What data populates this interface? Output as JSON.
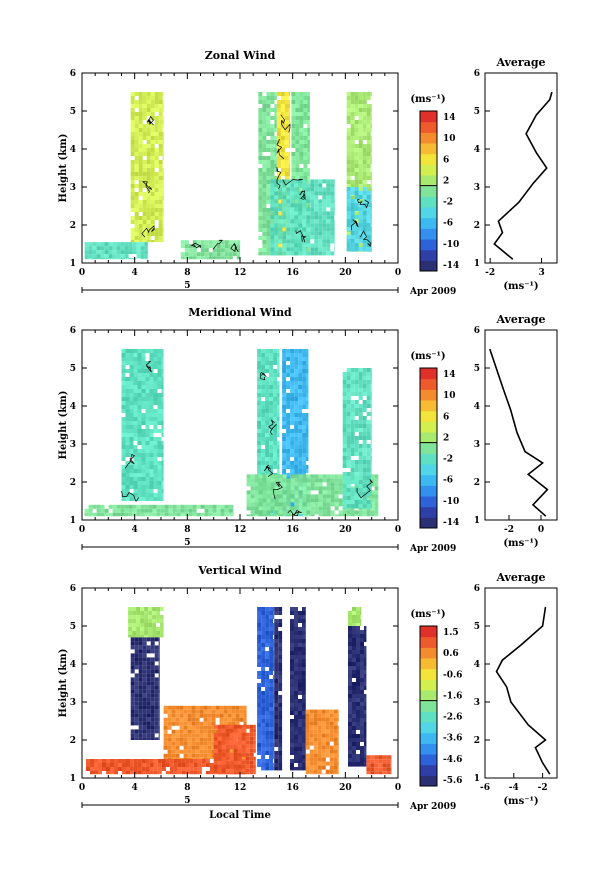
{
  "chart_data": [
    {
      "type": "heatmap",
      "title": "Zonal Wind",
      "ylabel": "Height (km)",
      "xlabel": "",
      "x_ticks": [
        "0",
        "4",
        "8",
        "12",
        "16",
        "20",
        "0"
      ],
      "y_ticks": [
        "1",
        "2",
        "3",
        "4",
        "5",
        "6"
      ],
      "xlim": [
        0,
        24
      ],
      "ylim": [
        1,
        6
      ],
      "colorbar_unit": "(ms⁻¹)",
      "colorbar_ticks": [
        "14",
        "10",
        "6",
        "2",
        "-2",
        "-6",
        "-10",
        "-14"
      ],
      "colorbar_range": [
        -16,
        16
      ],
      "day_label": "5",
      "month_label": "Apr 2009",
      "blocks": [
        {
          "t0": 3.7,
          "t1": 6.2,
          "h0": 1.55,
          "h1": 5.5,
          "v": 4
        },
        {
          "t0": 0.2,
          "t1": 5.0,
          "h0": 1.1,
          "h1": 1.55,
          "v": -2
        },
        {
          "t0": 7.5,
          "t1": 12.0,
          "h0": 1.1,
          "h1": 1.6,
          "v": -1
        },
        {
          "t0": 13.4,
          "t1": 14.8,
          "h0": 1.2,
          "h1": 5.5,
          "v": 0
        },
        {
          "t0": 14.8,
          "t1": 15.8,
          "h0": 1.2,
          "h1": 5.5,
          "v": 6
        },
        {
          "t0": 15.9,
          "t1": 17.3,
          "h0": 1.2,
          "h1": 5.5,
          "v": 1
        },
        {
          "t0": 14.3,
          "t1": 19.2,
          "h0": 1.2,
          "h1": 3.2,
          "v": -3
        },
        {
          "t0": 20.1,
          "t1": 22.0,
          "h0": 1.3,
          "h1": 5.5,
          "v": 2
        },
        {
          "t0": 20.1,
          "t1": 22.0,
          "h0": 1.3,
          "h1": 3.0,
          "v": -4
        }
      ],
      "profile": {
        "title": "Average",
        "xlabel": "(ms⁻¹)",
        "x_ticks": [
          "-2",
          "3"
        ],
        "xlim": [
          -2.5,
          4.5
        ],
        "y_ticks": [
          "1",
          "2",
          "3",
          "4",
          "5",
          "6"
        ],
        "points": [
          [
            0.2,
            1.1
          ],
          [
            -1.6,
            1.5
          ],
          [
            -0.8,
            1.8
          ],
          [
            -1.2,
            2.1
          ],
          [
            0.8,
            2.6
          ],
          [
            2.2,
            3.1
          ],
          [
            3.5,
            3.5
          ],
          [
            2.5,
            3.9
          ],
          [
            1.5,
            4.4
          ],
          [
            2.5,
            4.9
          ],
          [
            3.8,
            5.3
          ],
          [
            4.0,
            5.5
          ]
        ]
      }
    },
    {
      "type": "heatmap",
      "title": "Meridional Wind",
      "ylabel": "Height (km)",
      "xlabel": "",
      "x_ticks": [
        "0",
        "4",
        "8",
        "12",
        "16",
        "20",
        "0"
      ],
      "y_ticks": [
        "1",
        "2",
        "3",
        "4",
        "5",
        "6"
      ],
      "xlim": [
        0,
        24
      ],
      "ylim": [
        1,
        6
      ],
      "colorbar_unit": "(ms⁻¹)",
      "colorbar_ticks": [
        "14",
        "10",
        "6",
        "2",
        "-2",
        "-6",
        "-10",
        "-14"
      ],
      "colorbar_range": [
        -16,
        16
      ],
      "day_label": "5",
      "month_label": "Apr 2009",
      "blocks": [
        {
          "t0": 3.0,
          "t1": 6.2,
          "h0": 1.5,
          "h1": 5.5,
          "v": -3
        },
        {
          "t0": 0.2,
          "t1": 11.5,
          "h0": 1.1,
          "h1": 1.4,
          "v": -1
        },
        {
          "t0": 13.3,
          "t1": 15.0,
          "h0": 1.1,
          "h1": 5.5,
          "v": -2
        },
        {
          "t0": 15.2,
          "t1": 17.2,
          "h0": 1.1,
          "h1": 5.5,
          "v": -6
        },
        {
          "t0": 12.5,
          "t1": 22.5,
          "h0": 1.1,
          "h1": 2.2,
          "v": 1
        },
        {
          "t0": 19.8,
          "t1": 22.0,
          "h0": 1.3,
          "h1": 5.0,
          "v": -3
        }
      ],
      "profile": {
        "title": "Average",
        "xlabel": "(ms⁻¹)",
        "x_ticks": [
          "-2",
          "0"
        ],
        "xlim": [
          -3.5,
          1.0
        ],
        "y_ticks": [
          "1",
          "2",
          "3",
          "4",
          "5",
          "6"
        ],
        "points": [
          [
            0.3,
            1.1
          ],
          [
            -0.5,
            1.4
          ],
          [
            0.4,
            1.8
          ],
          [
            -0.8,
            2.2
          ],
          [
            0.1,
            2.5
          ],
          [
            -1.0,
            2.8
          ],
          [
            -1.5,
            3.3
          ],
          [
            -1.9,
            3.9
          ],
          [
            -2.4,
            4.5
          ],
          [
            -2.8,
            5.0
          ],
          [
            -3.2,
            5.5
          ]
        ]
      }
    },
    {
      "type": "heatmap",
      "title": "Vertical Wind",
      "ylabel": "Height (km)",
      "xlabel": "Local Time",
      "x_ticks": [
        "0",
        "4",
        "8",
        "12",
        "16",
        "20",
        "0"
      ],
      "y_ticks": [
        "1",
        "2",
        "3",
        "4",
        "5",
        "6"
      ],
      "xlim": [
        0,
        24
      ],
      "ylim": [
        1,
        6
      ],
      "colorbar_unit": "(ms⁻¹)",
      "colorbar_ticks": [
        "1.5",
        "0.6",
        "-0.6",
        "-1.6",
        "-2.6",
        "-3.6",
        "-4.6",
        "-5.6"
      ],
      "colorbar_range": [
        -6.0,
        2.0
      ],
      "day_label": "5",
      "month_label": "Apr 2009",
      "blocks": [
        {
          "t0": 3.5,
          "t1": 6.2,
          "h0": 4.7,
          "h1": 5.5,
          "v": -1.6
        },
        {
          "t0": 3.7,
          "t1": 5.9,
          "h0": 2.0,
          "h1": 4.7,
          "v": -6.0
        },
        {
          "t0": 0.3,
          "t1": 12.5,
          "h0": 1.1,
          "h1": 1.5,
          "v": 1.0
        },
        {
          "t0": 6.2,
          "t1": 12.5,
          "h0": 1.5,
          "h1": 2.9,
          "v": 0.4
        },
        {
          "t0": 10.0,
          "t1": 13.2,
          "h0": 1.1,
          "h1": 2.4,
          "v": 1.2
        },
        {
          "t0": 13.3,
          "t1": 14.6,
          "h0": 1.2,
          "h1": 5.5,
          "v": -4.6
        },
        {
          "t0": 14.6,
          "t1": 15.2,
          "h0": 1.2,
          "h1": 5.5,
          "v": -6.0
        },
        {
          "t0": 15.8,
          "t1": 17.0,
          "h0": 1.2,
          "h1": 5.5,
          "v": -6.0
        },
        {
          "t0": 17.0,
          "t1": 19.5,
          "h0": 1.1,
          "h1": 2.8,
          "v": 0.6
        },
        {
          "t0": 20.2,
          "t1": 21.2,
          "h0": 5.0,
          "h1": 5.5,
          "v": -1.6
        },
        {
          "t0": 20.2,
          "t1": 21.6,
          "h0": 1.3,
          "h1": 5.0,
          "v": -6.0
        },
        {
          "t0": 21.6,
          "t1": 23.5,
          "h0": 1.1,
          "h1": 1.6,
          "v": 1.0
        }
      ],
      "profile": {
        "title": "Average",
        "xlabel": "(ms⁻¹)",
        "x_ticks": [
          "-6",
          "-4",
          "-2"
        ],
        "xlim": [
          -6.0,
          -1.0
        ],
        "y_ticks": [
          "1",
          "2",
          "3",
          "4",
          "5",
          "6"
        ],
        "points": [
          [
            -1.5,
            1.1
          ],
          [
            -2.0,
            1.4
          ],
          [
            -2.5,
            1.8
          ],
          [
            -1.8,
            2.0
          ],
          [
            -3.0,
            2.4
          ],
          [
            -4.2,
            3.0
          ],
          [
            -4.5,
            3.4
          ],
          [
            -5.2,
            3.8
          ],
          [
            -4.8,
            4.1
          ],
          [
            -3.5,
            4.5
          ],
          [
            -2.0,
            5.0
          ],
          [
            -1.8,
            5.5
          ]
        ]
      }
    }
  ]
}
